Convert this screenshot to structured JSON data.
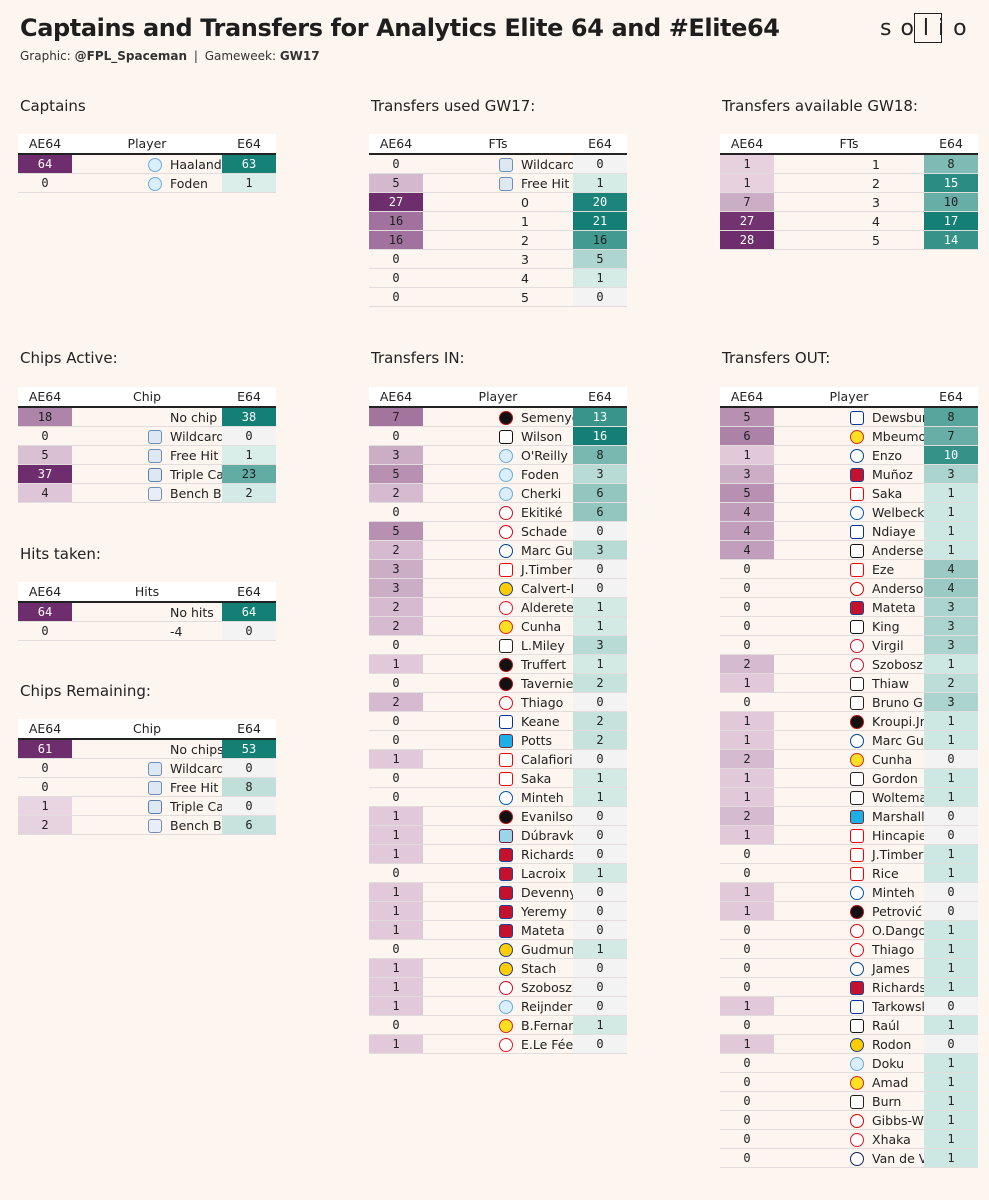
{
  "title": "Captains and Transfers for Analytics Elite 64 and #Elite64",
  "subtitle": {
    "graphic_label": "Graphic:",
    "graphic_author": "@FPL_Spaceman",
    "separator": "|",
    "gameweek_label": "Gameweek:",
    "gameweek": "GW17"
  },
  "logo_text": "solio",
  "colors": {
    "ae_max": "#6e2d6c",
    "e_max": "#137f75",
    "background": "#fcf5f0"
  },
  "tables": [
    {
      "id": "captains",
      "title": "Captains",
      "headers": [
        "AE64",
        "Player",
        "E64"
      ],
      "ae_max": 64,
      "e_max": 64,
      "rows": [
        {
          "ae": 64,
          "label": "Haaland",
          "icon": "man-city-crest",
          "e": 63
        },
        {
          "ae": 0,
          "label": "Foden",
          "icon": "man-city-crest",
          "e": 1
        }
      ]
    },
    {
      "id": "transfers-used",
      "title": "Transfers used GW17:",
      "headers": [
        "AE64",
        "FTs",
        "E64"
      ],
      "ae_max": 27,
      "e_max": 21,
      "rows": [
        {
          "ae": 0,
          "label": "Wildcard",
          "icon": "wildcard-chip-icon",
          "e": 0
        },
        {
          "ae": 5,
          "label": "Free Hit",
          "icon": "free-hit-chip-icon",
          "e": 1
        },
        {
          "ae": 27,
          "label": "0",
          "e": 20
        },
        {
          "ae": 16,
          "label": "1",
          "e": 21
        },
        {
          "ae": 16,
          "label": "2",
          "e": 16
        },
        {
          "ae": 0,
          "label": "3",
          "e": 5
        },
        {
          "ae": 0,
          "label": "4",
          "e": 1
        },
        {
          "ae": 0,
          "label": "5",
          "e": 0
        }
      ]
    },
    {
      "id": "transfers-available",
      "title": "Transfers available GW18:",
      "headers": [
        "AE64",
        "FTs",
        "E64"
      ],
      "ae_max": 28,
      "e_max": 17,
      "rows": [
        {
          "ae": 1,
          "label": "1",
          "e": 8
        },
        {
          "ae": 1,
          "label": "2",
          "e": 15
        },
        {
          "ae": 7,
          "label": "3",
          "e": 10
        },
        {
          "ae": 27,
          "label": "4",
          "e": 17
        },
        {
          "ae": 28,
          "label": "5",
          "e": 14
        }
      ]
    },
    {
      "id": "chips-active",
      "title": "Chips Active:",
      "headers": [
        "AE64",
        "Chip",
        "E64"
      ],
      "ae_max": 37,
      "e_max": 38,
      "rows": [
        {
          "ae": 18,
          "label": "No chip active",
          "e": 38
        },
        {
          "ae": 0,
          "label": "Wildcard",
          "icon": "wildcard-chip-icon",
          "e": 0
        },
        {
          "ae": 5,
          "label": "Free Hit",
          "icon": "free-hit-chip-icon",
          "e": 1
        },
        {
          "ae": 37,
          "label": "Triple Captain",
          "icon": "triple-captain-chip-icon",
          "e": 23
        },
        {
          "ae": 4,
          "label": "Bench Boost",
          "icon": "bench-boost-chip-icon",
          "e": 2
        }
      ]
    },
    {
      "id": "hits-taken",
      "title": "Hits taken:",
      "headers": [
        "AE64",
        "Hits",
        "E64"
      ],
      "ae_max": 64,
      "e_max": 64,
      "rows": [
        {
          "ae": 64,
          "label": "No hits",
          "e": 64
        },
        {
          "ae": 0,
          "label": "-4",
          "e": 0
        }
      ]
    },
    {
      "id": "chips-remaining",
      "title": "Chips Remaining:",
      "headers": [
        "AE64",
        "Chip",
        "E64"
      ],
      "ae_max": 61,
      "e_max": 53,
      "rows": [
        {
          "ae": 61,
          "label": "No chips",
          "e": 53
        },
        {
          "ae": 0,
          "label": "Wildcard",
          "icon": "wildcard-chip-icon",
          "e": 0
        },
        {
          "ae": 0,
          "label": "Free Hit",
          "icon": "free-hit-chip-icon",
          "e": 8
        },
        {
          "ae": 1,
          "label": "Triple Captain",
          "icon": "triple-captain-chip-icon",
          "e": 0
        },
        {
          "ae": 2,
          "label": "Bench Boost",
          "icon": "bench-boost-chip-icon",
          "e": 6
        }
      ]
    },
    {
      "id": "transfers-in",
      "title": "Transfers IN:",
      "headers": [
        "AE64",
        "Player",
        "E64"
      ],
      "ae_max": 12,
      "e_max": 16,
      "rows": [
        {
          "ae": 7,
          "label": "Semenyo",
          "icon": "bournemouth-crest",
          "e": 13
        },
        {
          "ae": 0,
          "label": "Wilson",
          "icon": "fulham-crest",
          "e": 16
        },
        {
          "ae": 3,
          "label": "O'Reilly",
          "icon": "man-city-crest",
          "e": 8
        },
        {
          "ae": 5,
          "label": "Foden",
          "icon": "man-city-crest",
          "e": 3
        },
        {
          "ae": 2,
          "label": "Cherki",
          "icon": "man-city-crest",
          "e": 6
        },
        {
          "ae": 0,
          "label": "Ekitiké",
          "icon": "liverpool-crest",
          "e": 6
        },
        {
          "ae": 5,
          "label": "Schade",
          "icon": "brentford-crest",
          "e": 0
        },
        {
          "ae": 2,
          "label": "Marc Guiu",
          "icon": "chelsea-crest",
          "e": 3
        },
        {
          "ae": 3,
          "label": "J.Timber",
          "icon": "arsenal-crest",
          "e": 0
        },
        {
          "ae": 3,
          "label": "Calvert-Lewin",
          "icon": "leeds-crest",
          "e": 0
        },
        {
          "ae": 2,
          "label": "Alderete",
          "icon": "sunderland-crest",
          "e": 1
        },
        {
          "ae": 2,
          "label": "Cunha",
          "icon": "man-utd-crest",
          "e": 1
        },
        {
          "ae": 0,
          "label": "L.Miley",
          "icon": "newcastle-crest",
          "e": 3
        },
        {
          "ae": 1,
          "label": "Truffert",
          "icon": "bournemouth-crest",
          "e": 1
        },
        {
          "ae": 0,
          "label": "Tavernier",
          "icon": "bournemouth-crest",
          "e": 2
        },
        {
          "ae": 2,
          "label": "Thiago",
          "icon": "brentford-crest",
          "e": 0
        },
        {
          "ae": 0,
          "label": "Keane",
          "icon": "everton-crest",
          "e": 2
        },
        {
          "ae": 0,
          "label": "Potts",
          "icon": "west-ham-crest",
          "e": 2
        },
        {
          "ae": 1,
          "label": "Calafiori",
          "icon": "arsenal-crest",
          "e": 0
        },
        {
          "ae": 0,
          "label": "Saka",
          "icon": "arsenal-crest",
          "e": 1
        },
        {
          "ae": 0,
          "label": "Minteh",
          "icon": "brighton-crest",
          "e": 1
        },
        {
          "ae": 1,
          "label": "Evanilson",
          "icon": "bournemouth-crest",
          "e": 0
        },
        {
          "ae": 1,
          "label": "Dúbravka",
          "icon": "burnley-crest",
          "e": 0
        },
        {
          "ae": 1,
          "label": "Richards",
          "icon": "crystal-palace-crest",
          "e": 0
        },
        {
          "ae": 0,
          "label": "Lacroix",
          "icon": "crystal-palace-crest",
          "e": 1
        },
        {
          "ae": 1,
          "label": "Devenny",
          "icon": "crystal-palace-crest",
          "e": 0
        },
        {
          "ae": 1,
          "label": "Yeremy",
          "icon": "crystal-palace-crest",
          "e": 0
        },
        {
          "ae": 1,
          "label": "Mateta",
          "icon": "crystal-palace-crest",
          "e": 0
        },
        {
          "ae": 0,
          "label": "Gudmundsson",
          "icon": "leeds-crest",
          "e": 1
        },
        {
          "ae": 1,
          "label": "Stach",
          "icon": "leeds-crest",
          "e": 0
        },
        {
          "ae": 1,
          "label": "Szoboszlai",
          "icon": "liverpool-crest",
          "e": 0
        },
        {
          "ae": 1,
          "label": "Reijnders",
          "icon": "man-city-crest",
          "e": 0
        },
        {
          "ae": 0,
          "label": "B.Fernandes",
          "icon": "man-utd-crest",
          "e": 1
        },
        {
          "ae": 1,
          "label": "E.Le Fée",
          "icon": "sunderland-crest",
          "e": 0
        }
      ]
    },
    {
      "id": "transfers-out",
      "title": "Transfers OUT:",
      "headers": [
        "AE64",
        "Player",
        "E64"
      ],
      "ae_max": 12,
      "e_max": 12,
      "rows": [
        {
          "ae": 5,
          "label": "Dewsbury-Hall",
          "icon": "everton-crest",
          "e": 8
        },
        {
          "ae": 6,
          "label": "Mbeumo",
          "icon": "man-utd-crest",
          "e": 7
        },
        {
          "ae": 1,
          "label": "Enzo",
          "icon": "chelsea-crest",
          "e": 10
        },
        {
          "ae": 3,
          "label": "Muñoz",
          "icon": "crystal-palace-crest",
          "e": 3
        },
        {
          "ae": 5,
          "label": "Saka",
          "icon": "arsenal-crest",
          "e": 1
        },
        {
          "ae": 4,
          "label": "Welbeck",
          "icon": "brighton-crest",
          "e": 1
        },
        {
          "ae": 4,
          "label": "Ndiaye",
          "icon": "everton-crest",
          "e": 1
        },
        {
          "ae": 4,
          "label": "Andersen",
          "icon": "fulham-crest",
          "e": 1
        },
        {
          "ae": 0,
          "label": "Eze",
          "icon": "arsenal-crest",
          "e": 4
        },
        {
          "ae": 0,
          "label": "Anderson",
          "icon": "nottm-forest-crest",
          "e": 4
        },
        {
          "ae": 0,
          "label": "Mateta",
          "icon": "crystal-palace-crest",
          "e": 3
        },
        {
          "ae": 0,
          "label": "King",
          "icon": "fulham-crest",
          "e": 3
        },
        {
          "ae": 0,
          "label": "Virgil",
          "icon": "liverpool-crest",
          "e": 3
        },
        {
          "ae": 2,
          "label": "Szoboszlai",
          "icon": "liverpool-crest",
          "e": 1
        },
        {
          "ae": 1,
          "label": "Thiaw",
          "icon": "newcastle-crest",
          "e": 2
        },
        {
          "ae": 0,
          "label": "Bruno G.",
          "icon": "newcastle-crest",
          "e": 3
        },
        {
          "ae": 1,
          "label": "Kroupi.Jr",
          "icon": "bournemouth-crest",
          "e": 1
        },
        {
          "ae": 1,
          "label": "Marc Guiu",
          "icon": "chelsea-crest",
          "e": 1
        },
        {
          "ae": 2,
          "label": "Cunha",
          "icon": "man-utd-crest",
          "e": 0
        },
        {
          "ae": 1,
          "label": "Gordon",
          "icon": "newcastle-crest",
          "e": 1
        },
        {
          "ae": 1,
          "label": "Woltemade",
          "icon": "newcastle-crest",
          "e": 1
        },
        {
          "ae": 2,
          "label": "Marshall",
          "icon": "west-ham-crest",
          "e": 0
        },
        {
          "ae": 1,
          "label": "Hincapie",
          "icon": "arsenal-crest",
          "e": 0
        },
        {
          "ae": 0,
          "label": "J.Timber",
          "icon": "arsenal-crest",
          "e": 1
        },
        {
          "ae": 0,
          "label": "Rice",
          "icon": "arsenal-crest",
          "e": 1
        },
        {
          "ae": 1,
          "label": "Minteh",
          "icon": "brighton-crest",
          "e": 0
        },
        {
          "ae": 1,
          "label": "Petrović",
          "icon": "bournemouth-crest",
          "e": 0
        },
        {
          "ae": 0,
          "label": "O.Dango",
          "icon": "brentford-crest",
          "e": 1
        },
        {
          "ae": 0,
          "label": "Thiago",
          "icon": "brentford-crest",
          "e": 1
        },
        {
          "ae": 0,
          "label": "James",
          "icon": "chelsea-crest",
          "e": 1
        },
        {
          "ae": 0,
          "label": "Richards",
          "icon": "crystal-palace-crest",
          "e": 1
        },
        {
          "ae": 1,
          "label": "Tarkowski",
          "icon": "everton-crest",
          "e": 0
        },
        {
          "ae": 0,
          "label": "Raúl",
          "icon": "fulham-crest",
          "e": 1
        },
        {
          "ae": 1,
          "label": "Rodon",
          "icon": "leeds-crest",
          "e": 0
        },
        {
          "ae": 0,
          "label": "Doku",
          "icon": "man-city-crest",
          "e": 1
        },
        {
          "ae": 0,
          "label": "Amad",
          "icon": "man-utd-crest",
          "e": 1
        },
        {
          "ae": 0,
          "label": "Burn",
          "icon": "newcastle-crest",
          "e": 1
        },
        {
          "ae": 0,
          "label": "Gibbs-White",
          "icon": "nottm-forest-crest",
          "e": 1
        },
        {
          "ae": 0,
          "label": "Xhaka",
          "icon": "sunderland-crest",
          "e": 1
        },
        {
          "ae": 0,
          "label": "Van de Ven",
          "icon": "spurs-crest",
          "e": 1
        }
      ]
    }
  ]
}
